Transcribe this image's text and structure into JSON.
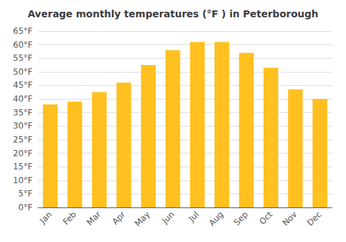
{
  "chart_data": {
    "type": "bar",
    "title": "Average monthly temperatures (°F ) in Peterborough",
    "categories": [
      "Jan",
      "Feb",
      "Mar",
      "Apr",
      "May",
      "Jun",
      "Jul",
      "Aug",
      "Sep",
      "Oct",
      "Nov",
      "Dec"
    ],
    "values": [
      38.0,
      39.0,
      42.5,
      46.0,
      52.5,
      58.0,
      61.0,
      61.0,
      57.0,
      51.5,
      43.5,
      40.0
    ],
    "color": "#FFC020",
    "ylim": [
      0,
      65
    ],
    "yticks": [
      {
        "value": 0,
        "label": "0°F"
      },
      {
        "value": 5,
        "label": "5°F"
      },
      {
        "value": 10,
        "label": "10°F"
      },
      {
        "value": 15,
        "label": "15°F"
      },
      {
        "value": 20,
        "label": "20°F"
      },
      {
        "value": 25,
        "label": "25°F"
      },
      {
        "value": 30,
        "label": "30°F"
      },
      {
        "value": 35,
        "label": "35°F"
      },
      {
        "value": 40,
        "label": "40°F"
      },
      {
        "value": 45,
        "label": "45°F"
      },
      {
        "value": 50,
        "label": "50°F"
      },
      {
        "value": 55,
        "label": "55°F"
      },
      {
        "value": 60,
        "label": "60°F"
      },
      {
        "value": 65,
        "label": "65°F"
      }
    ],
    "grid": true
  }
}
